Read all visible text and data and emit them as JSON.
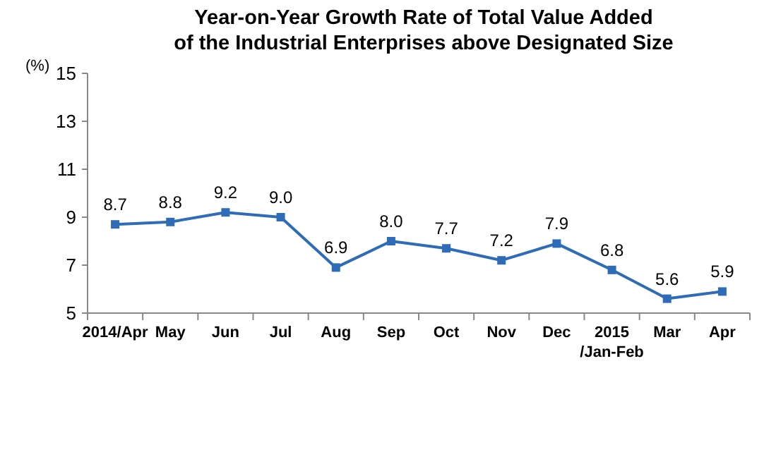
{
  "chart_data": {
    "type": "line",
    "title": "Year-on-Year Growth Rate of Total Value Added\nof the Industrial Enterprises above Designated Size",
    "ylabel": "(%)",
    "categories": [
      "2014/Apr",
      "May",
      "Jun",
      "Jul",
      "Aug",
      "Sep",
      "Oct",
      "Nov",
      "Dec",
      "2015\n/Jan-Feb",
      "Mar",
      "Apr"
    ],
    "series": [
      {
        "color": "#2e6cb8",
        "values": [
          8.7,
          8.8,
          9.2,
          9.0,
          6.9,
          8.0,
          7.7,
          7.2,
          7.9,
          6.8,
          5.6,
          5.9
        ],
        "value_labels": [
          "8.7",
          "8.8",
          "9.2",
          "9.0",
          "6.9",
          "8.0",
          "7.7",
          "7.2",
          "7.9",
          "6.8",
          "5.6",
          "5.9"
        ]
      }
    ],
    "ylim": [
      5,
      15
    ],
    "yticks": [
      5,
      7,
      9,
      11,
      13,
      15
    ],
    "marker": "square",
    "line_style": "solid",
    "grid": false
  }
}
